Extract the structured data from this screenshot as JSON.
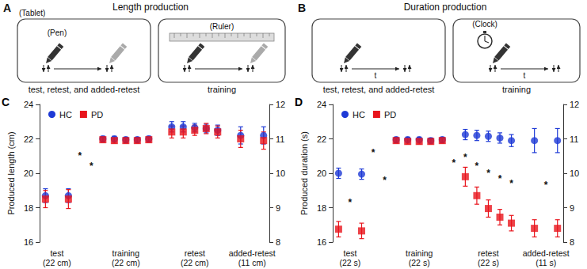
{
  "diagrams": [
    {
      "panel": "A",
      "title": "Length production",
      "boxes": [
        {
          "note": "(Tablet)",
          "tool": "(Pen)",
          "caption": "test, retest, and added-retest"
        },
        {
          "tool": "(Ruler)",
          "caption": "training"
        }
      ]
    },
    {
      "panel": "B",
      "title": "Duration production",
      "boxes": [
        {
          "time": "t",
          "caption": "test, retest, and added-retest"
        },
        {
          "tool": "(Clock)",
          "time": "t",
          "caption": "training"
        }
      ]
    }
  ],
  "chart_data": [
    {
      "type": "scatter",
      "panel": "C",
      "ylabel": "Produced length (cm)",
      "categories": [
        null,
        "test\n(22 cm)",
        null,
        null,
        null,
        null,
        null,
        "training\n(22 cm)",
        null,
        null,
        null,
        null,
        null,
        "retest\n(22 cm)",
        null,
        null,
        null,
        null,
        "added-retest\n(11 cm)",
        null
      ],
      "ylim": [
        16,
        24
      ],
      "yticks": [
        16,
        18,
        20,
        22,
        24
      ],
      "y2lim": [
        8,
        12
      ],
      "y2ticks": [
        8,
        9,
        10,
        11,
        12
      ],
      "grid": false,
      "legend": "upper left",
      "series": [
        {
          "name": "HC",
          "color": "#1e3ad6",
          "marker": "circle",
          "values": [
            18.7,
            null,
            18.7,
            null,
            null,
            22.0,
            22.0,
            21.95,
            21.95,
            22.0,
            null,
            22.7,
            22.7,
            22.65,
            22.6,
            22.5,
            null,
            null,
            null,
            null
          ],
          "errors": [
            0.4,
            null,
            0.4,
            null,
            null,
            0.15,
            0.15,
            0.15,
            0.15,
            0.15,
            null,
            0.3,
            0.3,
            0.25,
            0.25,
            0.3,
            null,
            null,
            null,
            null
          ]
        },
        {
          "name": "PD",
          "color": "#e8141c",
          "marker": "square",
          "values": [
            18.5,
            null,
            18.5,
            null,
            null,
            21.95,
            21.9,
            21.9,
            21.9,
            21.95,
            null,
            22.4,
            22.4,
            22.5,
            22.6,
            22.4,
            null,
            null,
            null,
            null
          ],
          "errors": [
            0.5,
            null,
            0.55,
            null,
            null,
            0.15,
            0.15,
            0.15,
            0.15,
            0.15,
            null,
            0.35,
            0.35,
            0.3,
            0.3,
            0.35,
            null,
            null,
            null,
            null
          ]
        },
        {
          "name": "HC",
          "color": "#1e3ad6",
          "marker": "circle",
          "axis": "y2",
          "values": [
            null,
            null,
            null,
            null,
            null,
            null,
            null,
            null,
            null,
            null,
            null,
            null,
            null,
            null,
            null,
            null,
            null,
            11.1,
            null,
            11.1
          ],
          "errors": [
            null,
            null,
            null,
            null,
            null,
            null,
            null,
            null,
            null,
            null,
            null,
            null,
            null,
            null,
            null,
            null,
            null,
            0.25,
            null,
            0.25
          ]
        },
        {
          "name": "PD",
          "color": "#e8141c",
          "marker": "square",
          "axis": "y2",
          "values": [
            null,
            null,
            null,
            null,
            null,
            null,
            null,
            null,
            null,
            null,
            null,
            null,
            null,
            null,
            null,
            null,
            null,
            11.0,
            null,
            10.95
          ],
          "errors": [
            null,
            null,
            null,
            null,
            null,
            null,
            null,
            null,
            null,
            null,
            null,
            null,
            null,
            null,
            null,
            null,
            null,
            0.25,
            null,
            0.25
          ]
        }
      ],
      "annotations": [
        {
          "text": "*",
          "x": 3,
          "y": 21.0
        },
        {
          "text": "*",
          "x": 4,
          "y": 20.4
        }
      ]
    },
    {
      "type": "scatter",
      "panel": "D",
      "ylabel": "Produced duration (s)",
      "categories": [
        null,
        "test\n(22 s)",
        null,
        null,
        null,
        null,
        null,
        "training\n(22 s)",
        null,
        null,
        null,
        null,
        null,
        "retest\n(22 s)",
        null,
        null,
        null,
        null,
        "added-retest\n(11 s)",
        null
      ],
      "ylim": [
        16,
        24
      ],
      "yticks": [
        16,
        18,
        20,
        22,
        24
      ],
      "y2lim": [
        8,
        12
      ],
      "y2ticks": [
        8,
        9,
        10,
        11,
        12
      ],
      "grid": false,
      "legend": "upper left",
      "series": [
        {
          "name": "HC",
          "color": "#1e3ad6",
          "marker": "circle",
          "values": [
            20.0,
            null,
            19.95,
            null,
            null,
            21.95,
            21.95,
            21.95,
            21.9,
            21.95,
            null,
            22.25,
            22.2,
            22.15,
            22.05,
            21.9,
            null,
            null,
            null,
            null
          ],
          "errors": [
            0.3,
            null,
            0.3,
            null,
            null,
            0.15,
            0.15,
            0.15,
            0.15,
            0.15,
            null,
            0.3,
            0.3,
            0.3,
            0.3,
            0.35,
            null,
            null,
            null,
            null
          ]
        },
        {
          "name": "PD",
          "color": "#e8141c",
          "marker": "square",
          "values": [
            16.75,
            null,
            16.65,
            null,
            null,
            21.9,
            21.85,
            21.85,
            21.85,
            21.9,
            null,
            19.8,
            18.7,
            17.95,
            17.45,
            17.1,
            null,
            null,
            null,
            null
          ],
          "errors": [
            0.45,
            null,
            0.45,
            null,
            null,
            0.15,
            0.15,
            0.15,
            0.15,
            0.15,
            null,
            0.55,
            0.5,
            0.5,
            0.45,
            0.45,
            null,
            null,
            null,
            null
          ]
        },
        {
          "name": "HC",
          "color": "#1e3ad6",
          "marker": "circle",
          "axis": "y2",
          "values": [
            null,
            null,
            null,
            null,
            null,
            null,
            null,
            null,
            null,
            null,
            null,
            null,
            null,
            null,
            null,
            null,
            null,
            10.95,
            null,
            10.95
          ],
          "errors": [
            null,
            null,
            null,
            null,
            null,
            null,
            null,
            null,
            null,
            null,
            null,
            null,
            null,
            null,
            null,
            null,
            null,
            0.35,
            null,
            0.35
          ]
        },
        {
          "name": "PD",
          "color": "#e8141c",
          "marker": "square",
          "axis": "y2",
          "values": [
            null,
            null,
            null,
            null,
            null,
            null,
            null,
            null,
            null,
            null,
            null,
            null,
            null,
            null,
            null,
            null,
            null,
            8.4,
            null,
            8.4
          ],
          "errors": [
            null,
            null,
            null,
            null,
            null,
            null,
            null,
            null,
            null,
            null,
            null,
            null,
            null,
            null,
            null,
            null,
            null,
            0.25,
            null,
            0.25
          ]
        }
      ],
      "annotations": [
        {
          "text": "*",
          "x": 1,
          "y": 18.3
        },
        {
          "text": "*",
          "x": 3,
          "y": 21.2
        },
        {
          "text": "*",
          "x": 4,
          "y": 19.6
        },
        {
          "text": "*",
          "x": 10,
          "y": 20.6
        },
        {
          "text": "*",
          "x": 11,
          "y": 20.9
        },
        {
          "text": "*",
          "x": 12,
          "y": 20.4
        },
        {
          "text": "*",
          "x": 13,
          "y": 20.0
        },
        {
          "text": "*",
          "x": 14,
          "y": 19.7
        },
        {
          "text": "*",
          "x": 15,
          "y": 19.4
        },
        {
          "text": "*",
          "x": 18,
          "y": 19.3
        }
      ]
    }
  ]
}
